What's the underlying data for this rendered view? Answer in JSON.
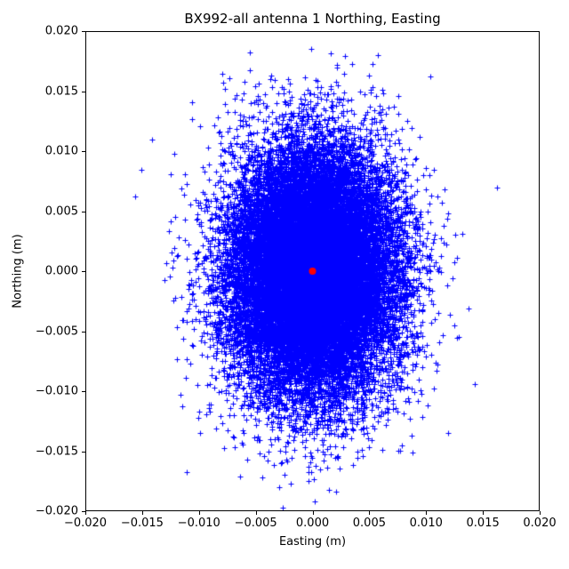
{
  "chart_data": {
    "type": "scatter",
    "title": "BX992-all antenna 1 Northing, Easting",
    "xlabel": "Easting (m)",
    "ylabel": "Northing (m)",
    "xlim": [
      -0.02,
      0.02
    ],
    "ylim": [
      -0.02,
      0.02
    ],
    "grid": false,
    "legend": "none",
    "x_tick_values": [
      -0.02,
      -0.015,
      -0.01,
      -0.005,
      0.0,
      0.005,
      0.01,
      0.015,
      0.02
    ],
    "x_tick_labels": [
      "−0.020",
      "−0.015",
      "−0.010",
      "−0.005",
      "0.000",
      "0.005",
      "0.010",
      "0.015",
      "0.020"
    ],
    "y_tick_values": [
      -0.02,
      -0.015,
      -0.01,
      -0.005,
      0.0,
      0.005,
      0.01,
      0.015,
      0.02
    ],
    "y_tick_labels": [
      "−0.020",
      "−0.015",
      "−0.010",
      "−0.005",
      "0.000",
      "0.005",
      "0.010",
      "0.015",
      "0.020"
    ],
    "axis_color": "#000000",
    "series": [
      {
        "name": "antenna-position-scatter",
        "marker": "+",
        "color": "#0000ff",
        "distribution": "gaussian",
        "n_points": 25000,
        "center_x": 0.0,
        "center_y": 0.0,
        "sigma_x": 0.0037,
        "sigma_y": 0.0052,
        "seed": 42,
        "marker_half_px": 3,
        "approx_extent_x": [
          -0.016,
          0.0155
        ],
        "approx_extent_y": [
          -0.0188,
          0.0188
        ]
      },
      {
        "name": "mean-center-point",
        "marker": "o",
        "color": "#ff0000",
        "points": [
          [
            0.0,
            0.0
          ]
        ],
        "radius_px": 4
      }
    ]
  }
}
